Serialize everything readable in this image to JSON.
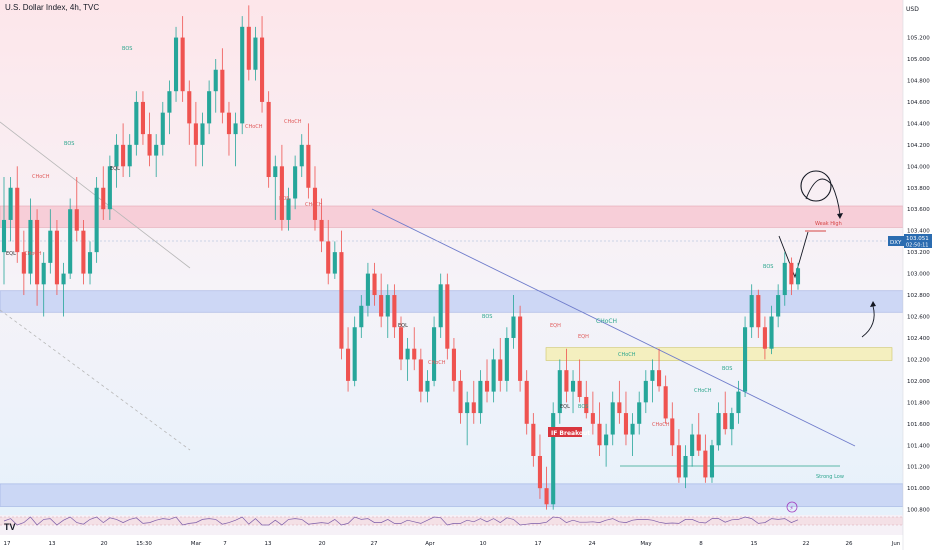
{
  "header": {
    "title": "U.S. Dollar Index, 4h, TVC"
  },
  "currency": "USD",
  "price_tag": {
    "ticker": "DXY",
    "price": "103.051",
    "timer": "02:50:11"
  },
  "chart_data": {
    "type": "candlestick",
    "title": "U.S. Dollar Index, 4h, TVC",
    "xlabel": "",
    "ylabel": "USD",
    "ylim": [
      100.75,
      105.55
    ],
    "y_ticks": [
      100.8,
      101.0,
      101.2,
      101.4,
      101.6,
      101.8,
      102.0,
      102.2,
      102.4,
      102.6,
      102.8,
      103.0,
      103.2,
      103.4,
      103.6,
      103.8,
      104.0,
      104.2,
      104.4,
      104.6,
      104.8,
      105.0,
      105.2
    ],
    "x_ticks": [
      "17",
      "13",
      "20",
      "15:30",
      "Mar",
      "7",
      "13",
      "20",
      "27",
      "Apr",
      "10",
      "17",
      "24",
      "May",
      "8",
      "15",
      "22",
      "26",
      "Jun"
    ],
    "last_price": 103.051,
    "zones": [
      {
        "type": "supply",
        "from": 103.43,
        "to": 103.63,
        "color": "#f7c9d3"
      },
      {
        "type": "demand",
        "from": 102.64,
        "to": 102.84,
        "color": "#c7d3f5"
      },
      {
        "type": "demand",
        "from": 100.83,
        "to": 101.04,
        "color": "#c7d3f5"
      },
      {
        "type": "order-block",
        "from": 102.19,
        "to": 102.31,
        "color": "#f5efb5"
      }
    ],
    "annotations": [
      "EQL",
      "EQH",
      "BOS",
      "CHoCH",
      "IF Breakout",
      "Weak High",
      "Strong Low"
    ],
    "candles": [
      [
        103.2,
        103.9,
        102.9,
        103.5
      ],
      [
        103.5,
        103.9,
        103.3,
        103.8
      ],
      [
        103.8,
        104.0,
        103.1,
        103.2
      ],
      [
        103.2,
        103.4,
        102.8,
        103.0
      ],
      [
        103.0,
        103.7,
        102.9,
        103.5
      ],
      [
        103.5,
        103.6,
        102.7,
        102.9
      ],
      [
        102.9,
        103.2,
        102.6,
        103.1
      ],
      [
        103.1,
        103.6,
        103.0,
        103.4
      ],
      [
        103.4,
        103.5,
        102.8,
        102.9
      ],
      [
        102.9,
        103.1,
        102.6,
        103.0
      ],
      [
        103.0,
        103.7,
        102.95,
        103.6
      ],
      [
        103.6,
        103.9,
        103.3,
        103.4
      ],
      [
        103.4,
        103.5,
        102.9,
        103.0
      ],
      [
        103.0,
        103.3,
        102.9,
        103.2
      ],
      [
        103.2,
        103.9,
        103.1,
        103.8
      ],
      [
        103.8,
        104.0,
        103.5,
        103.6
      ],
      [
        103.6,
        104.1,
        103.5,
        104.0
      ],
      [
        104.0,
        104.3,
        103.8,
        104.2
      ],
      [
        104.2,
        104.4,
        103.9,
        104.0
      ],
      [
        104.0,
        104.3,
        103.9,
        104.2
      ],
      [
        104.2,
        104.7,
        104.1,
        104.6
      ],
      [
        104.6,
        104.7,
        104.2,
        104.3
      ],
      [
        104.3,
        104.5,
        104.0,
        104.1
      ],
      [
        104.1,
        104.3,
        103.9,
        104.2
      ],
      [
        104.2,
        104.6,
        104.1,
        104.5
      ],
      [
        104.5,
        104.8,
        104.3,
        104.7
      ],
      [
        104.7,
        105.3,
        104.6,
        105.2
      ],
      [
        105.2,
        105.4,
        104.6,
        104.7
      ],
      [
        104.7,
        104.8,
        104.2,
        104.4
      ],
      [
        104.4,
        104.6,
        104.0,
        104.2
      ],
      [
        104.2,
        104.5,
        104.0,
        104.4
      ],
      [
        104.4,
        104.8,
        104.3,
        104.7
      ],
      [
        104.7,
        105.0,
        104.5,
        104.9
      ],
      [
        104.9,
        105.1,
        104.4,
        104.5
      ],
      [
        104.5,
        104.6,
        104.1,
        104.3
      ],
      [
        104.3,
        104.5,
        104.0,
        104.4
      ],
      [
        104.4,
        105.4,
        104.3,
        105.3
      ],
      [
        105.3,
        105.5,
        104.8,
        104.9
      ],
      [
        104.9,
        105.3,
        104.8,
        105.2
      ],
      [
        105.2,
        105.4,
        104.5,
        104.6
      ],
      [
        104.6,
        104.7,
        103.8,
        103.9
      ],
      [
        103.9,
        104.1,
        103.5,
        104.0
      ],
      [
        104.0,
        104.2,
        103.4,
        103.5
      ],
      [
        103.5,
        103.8,
        103.4,
        103.7
      ],
      [
        103.7,
        104.1,
        103.6,
        104.0
      ],
      [
        104.0,
        104.3,
        103.9,
        104.2
      ],
      [
        104.2,
        104.4,
        103.7,
        103.8
      ],
      [
        103.8,
        104.0,
        103.4,
        103.5
      ],
      [
        103.5,
        103.7,
        103.2,
        103.3
      ],
      [
        103.3,
        103.5,
        102.9,
        103.0
      ],
      [
        103.0,
        103.3,
        102.95,
        103.2
      ],
      [
        103.2,
        103.4,
        102.2,
        102.3
      ],
      [
        102.3,
        102.5,
        101.9,
        102.0
      ],
      [
        102.0,
        102.6,
        101.95,
        102.5
      ],
      [
        102.5,
        102.8,
        102.4,
        102.7
      ],
      [
        102.7,
        103.1,
        102.6,
        103.0
      ],
      [
        103.0,
        103.1,
        102.7,
        102.8
      ],
      [
        102.8,
        103.0,
        102.5,
        102.6
      ],
      [
        102.6,
        102.9,
        102.4,
        102.8
      ],
      [
        102.8,
        102.9,
        102.4,
        102.5
      ],
      [
        102.5,
        102.6,
        102.1,
        102.2
      ],
      [
        102.2,
        102.4,
        102.0,
        102.3
      ],
      [
        102.3,
        102.5,
        102.1,
        102.2
      ],
      [
        102.2,
        102.3,
        101.8,
        101.9
      ],
      [
        101.9,
        102.1,
        101.8,
        102.0
      ],
      [
        102.0,
        102.6,
        101.95,
        102.5
      ],
      [
        102.5,
        103.0,
        102.4,
        102.9
      ],
      [
        102.9,
        103.0,
        102.2,
        102.3
      ],
      [
        102.3,
        102.4,
        101.9,
        102.0
      ],
      [
        102.0,
        102.1,
        101.6,
        101.7
      ],
      [
        101.7,
        101.9,
        101.4,
        101.8
      ],
      [
        101.8,
        102.0,
        101.6,
        101.7
      ],
      [
        101.7,
        102.1,
        101.6,
        102.0
      ],
      [
        102.0,
        102.2,
        101.8,
        101.9
      ],
      [
        101.9,
        102.3,
        101.8,
        102.2
      ],
      [
        102.2,
        102.4,
        101.9,
        102.0
      ],
      [
        102.0,
        102.5,
        101.9,
        102.4
      ],
      [
        102.4,
        102.8,
        102.3,
        102.6
      ],
      [
        102.6,
        102.7,
        101.9,
        102.0
      ],
      [
        102.0,
        102.1,
        101.5,
        101.6
      ],
      [
        101.6,
        101.7,
        101.2,
        101.3
      ],
      [
        101.3,
        101.5,
        100.9,
        101.0
      ],
      [
        101.0,
        101.2,
        100.8,
        100.85
      ],
      [
        100.85,
        101.8,
        100.8,
        101.7
      ],
      [
        101.7,
        102.2,
        101.6,
        102.1
      ],
      [
        102.1,
        102.3,
        101.8,
        101.9
      ],
      [
        101.9,
        102.1,
        101.7,
        102.0
      ],
      [
        102.0,
        102.2,
        101.8,
        101.85
      ],
      [
        101.85,
        102.0,
        101.65,
        101.7
      ],
      [
        101.7,
        101.9,
        101.5,
        101.6
      ],
      [
        101.6,
        101.8,
        101.3,
        101.4
      ],
      [
        101.4,
        101.6,
        101.2,
        101.5
      ],
      [
        101.5,
        101.9,
        101.4,
        101.8
      ],
      [
        101.8,
        102.0,
        101.6,
        101.7
      ],
      [
        101.7,
        101.9,
        101.4,
        101.5
      ],
      [
        101.5,
        101.7,
        101.3,
        101.6
      ],
      [
        101.6,
        101.9,
        101.5,
        101.8
      ],
      [
        101.8,
        102.1,
        101.7,
        102.0
      ],
      [
        102.0,
        102.2,
        101.8,
        102.1
      ],
      [
        102.1,
        102.3,
        101.9,
        101.95
      ],
      [
        101.95,
        102.05,
        101.6,
        101.65
      ],
      [
        101.65,
        101.8,
        101.3,
        101.4
      ],
      [
        101.4,
        101.55,
        101.05,
        101.1
      ],
      [
        101.1,
        101.4,
        101.0,
        101.3
      ],
      [
        101.3,
        101.6,
        101.2,
        101.5
      ],
      [
        101.5,
        101.7,
        101.3,
        101.35
      ],
      [
        101.35,
        101.5,
        101.05,
        101.1
      ],
      [
        101.1,
        101.45,
        101.05,
        101.4
      ],
      [
        101.4,
        101.8,
        101.35,
        101.7
      ],
      [
        101.7,
        101.9,
        101.5,
        101.55
      ],
      [
        101.55,
        101.75,
        101.4,
        101.7
      ],
      [
        101.7,
        102.0,
        101.6,
        101.9
      ],
      [
        101.9,
        102.6,
        101.85,
        102.5
      ],
      [
        102.5,
        102.9,
        102.4,
        102.8
      ],
      [
        102.8,
        102.85,
        102.4,
        102.5
      ],
      [
        102.5,
        102.6,
        102.2,
        102.3
      ],
      [
        102.3,
        102.7,
        102.25,
        102.6
      ],
      [
        102.6,
        102.9,
        102.5,
        102.8
      ],
      [
        102.8,
        103.2,
        102.7,
        103.1
      ],
      [
        103.1,
        103.15,
        102.8,
        102.9
      ],
      [
        102.9,
        103.1,
        102.85,
        103.05
      ]
    ]
  }
}
